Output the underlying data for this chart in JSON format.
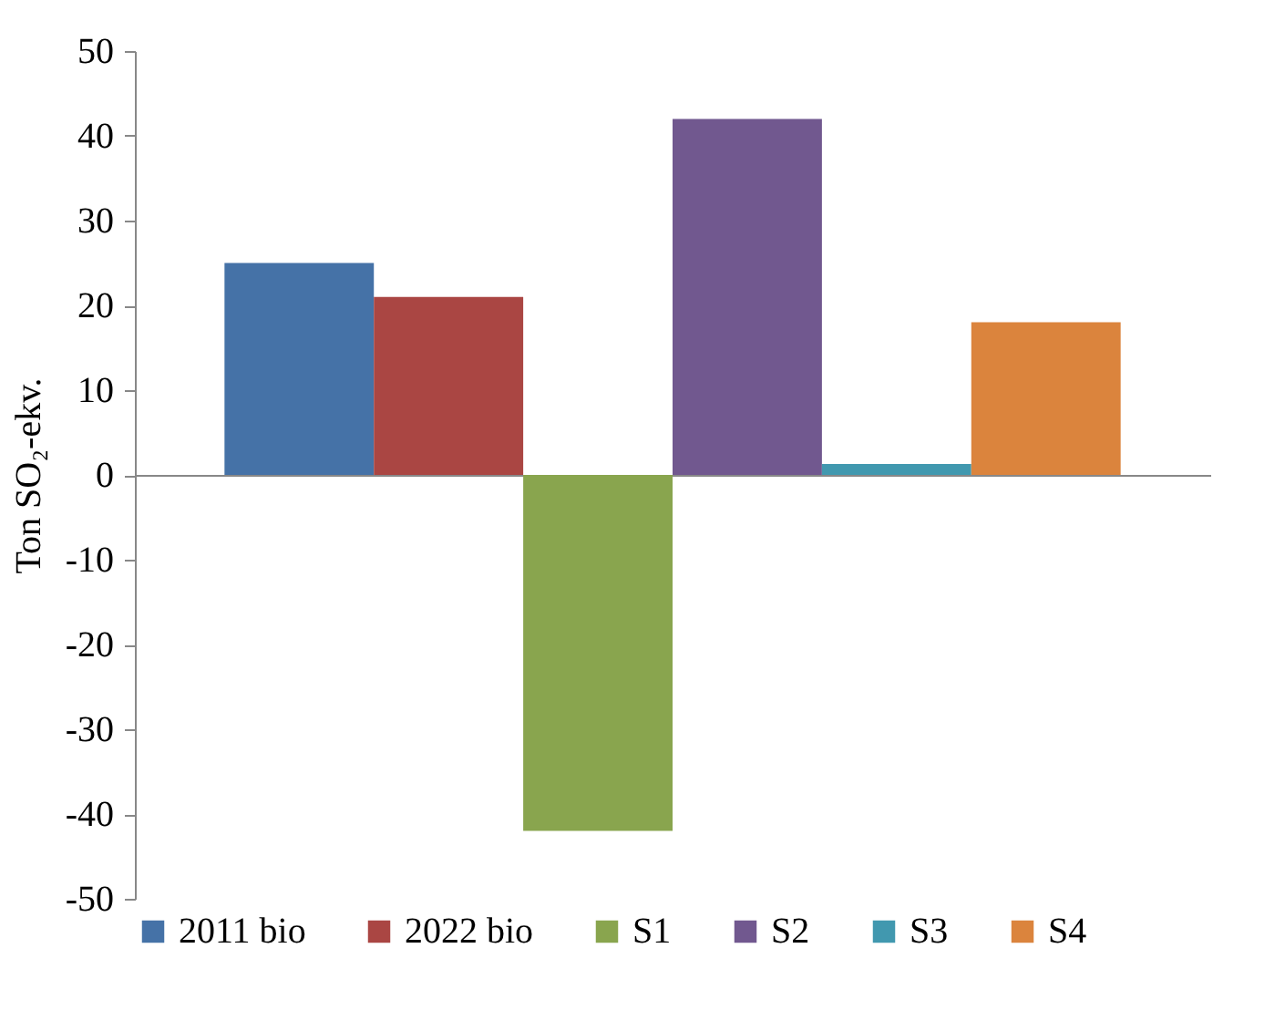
{
  "chart_data": {
    "type": "bar",
    "ylabel": "Ton SO₂-ekv.",
    "categories": [
      null
    ],
    "series": [
      {
        "name": "2011 bio",
        "color": "#4572a7",
        "values": [
          25
        ]
      },
      {
        "name": "2022 bio",
        "color": "#aa4643",
        "values": [
          21
        ]
      },
      {
        "name": "S1",
        "color": "#89a54e",
        "values": [
          -42
        ]
      },
      {
        "name": "S2",
        "color": "#71588f",
        "values": [
          42
        ]
      },
      {
        "name": "S3",
        "color": "#4198af",
        "values": [
          1.3
        ]
      },
      {
        "name": "S4",
        "color": "#db843d",
        "values": [
          18
        ]
      }
    ],
    "ylim": [
      -50,
      50
    ],
    "yticks": [
      -50,
      -40,
      -30,
      -20,
      -10,
      0,
      10,
      20,
      30,
      40,
      50
    ],
    "legend": "bottom"
  }
}
